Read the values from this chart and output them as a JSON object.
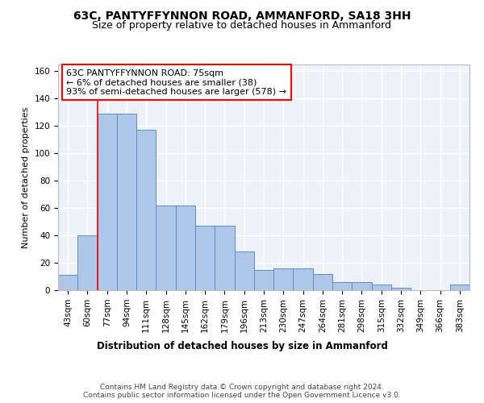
{
  "title1": "63C, PANTYFFYNNON ROAD, AMMANFORD, SA18 3HH",
  "title2": "Size of property relative to detached houses in Ammanford",
  "xlabel": "Distribution of detached houses by size in Ammanford",
  "ylabel": "Number of detached properties",
  "categories": [
    "43sqm",
    "60sqm",
    "77sqm",
    "94sqm",
    "111sqm",
    "128sqm",
    "145sqm",
    "162sqm",
    "179sqm",
    "196sqm",
    "213sqm",
    "230sqm",
    "247sqm",
    "264sqm",
    "281sqm",
    "298sqm",
    "315sqm",
    "332sqm",
    "349sqm",
    "366sqm",
    "383sqm"
  ],
  "bar_values": [
    11,
    40,
    129,
    129,
    117,
    62,
    62,
    47,
    47,
    28,
    15,
    16,
    16,
    12,
    6,
    6,
    4,
    2,
    0,
    0,
    4
  ],
  "bar_color": "#aec6e8",
  "bar_edge_color": "#5a8fc0",
  "annotation_text": "63C PANTYFFYNNON ROAD: 75sqm\n← 6% of detached houses are smaller (38)\n93% of semi-detached houses are larger (578) →",
  "annotation_box_color": "white",
  "annotation_box_edge_color": "red",
  "vline_x": 1.5,
  "vline_color": "red",
  "ylim": [
    0,
    165
  ],
  "yticks": [
    0,
    20,
    40,
    60,
    80,
    100,
    120,
    140,
    160
  ],
  "footer": "Contains HM Land Registry data © Crown copyright and database right 2024.\nContains public sector information licensed under the Open Government Licence v3.0.",
  "bg_color": "#eef2f8",
  "grid_color": "#ffffff",
  "title1_fontsize": 10,
  "title2_fontsize": 9,
  "xlabel_fontsize": 8.5,
  "ylabel_fontsize": 8,
  "tick_fontsize": 7.5,
  "annotation_fontsize": 8,
  "footer_fontsize": 6.5
}
